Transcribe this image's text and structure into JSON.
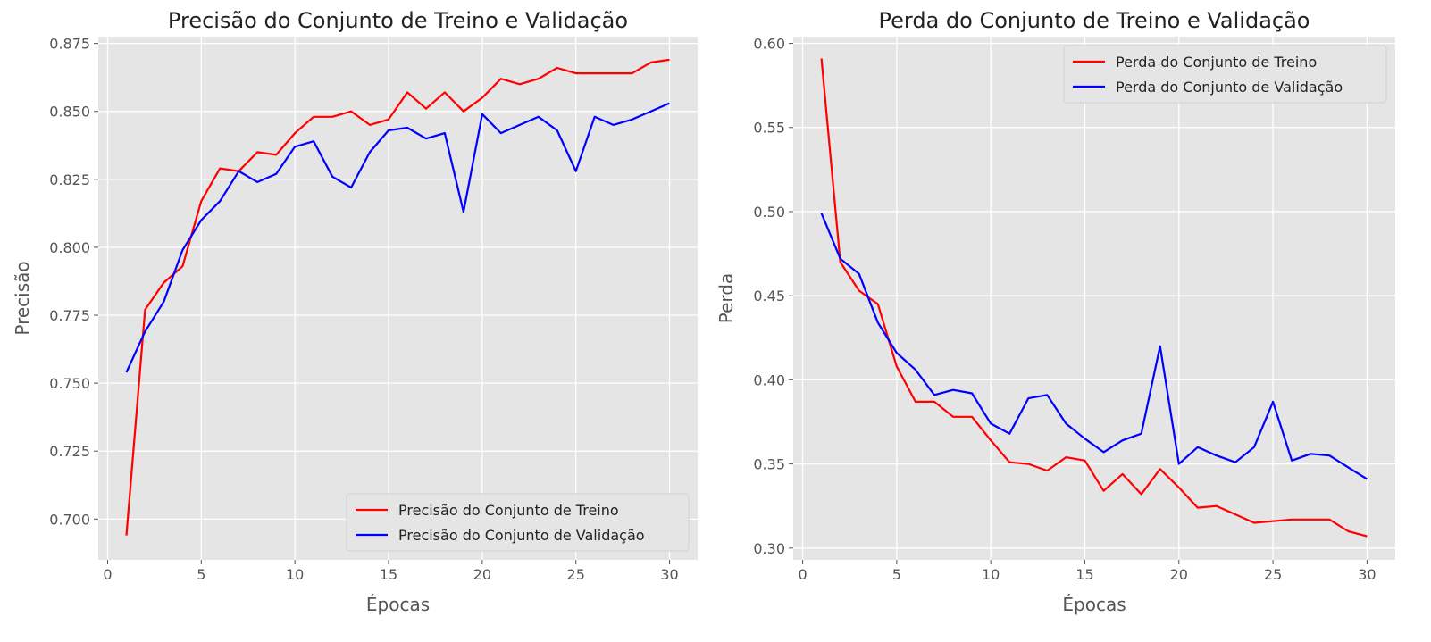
{
  "chart_data": [
    {
      "type": "line",
      "title": "Precisão do Conjunto de Treino e Validação",
      "xlabel": "Épocas",
      "ylabel": "Precisão",
      "xlim": [
        -0.5,
        31.5
      ],
      "ylim": [
        0.685,
        0.8775
      ],
      "xticks": [
        0,
        5,
        10,
        15,
        20,
        25,
        30
      ],
      "xtick_labels": [
        "0",
        "5",
        "10",
        "15",
        "20",
        "25",
        "30"
      ],
      "yticks": [
        0.7,
        0.725,
        0.75,
        0.775,
        0.8,
        0.825,
        0.85,
        0.875
      ],
      "ytick_labels": [
        "0.700",
        "0.725",
        "0.750",
        "0.775",
        "0.800",
        "0.825",
        "0.850",
        "0.875"
      ],
      "grid": true,
      "legend_position": "bottom-right",
      "x": [
        1,
        2,
        3,
        4,
        5,
        6,
        7,
        8,
        9,
        10,
        11,
        12,
        13,
        14,
        15,
        16,
        17,
        18,
        19,
        20,
        21,
        22,
        23,
        24,
        25,
        26,
        27,
        28,
        29,
        30
      ],
      "series": [
        {
          "name": "Precisão do Conjunto de Treino",
          "color": "#ff0000",
          "values": [
            0.694,
            0.777,
            0.787,
            0.793,
            0.817,
            0.829,
            0.828,
            0.835,
            0.834,
            0.842,
            0.848,
            0.848,
            0.85,
            0.845,
            0.847,
            0.857,
            0.851,
            0.857,
            0.85,
            0.855,
            0.862,
            0.86,
            0.862,
            0.866,
            0.864,
            0.864,
            0.864,
            0.864,
            0.868,
            0.869
          ]
        },
        {
          "name": "Precisão do Conjunto de Validação",
          "color": "#0000ff",
          "values": [
            0.754,
            0.769,
            0.78,
            0.799,
            0.81,
            0.817,
            0.828,
            0.824,
            0.827,
            0.837,
            0.839,
            0.826,
            0.822,
            0.835,
            0.843,
            0.844,
            0.84,
            0.842,
            0.813,
            0.849,
            0.842,
            0.845,
            0.848,
            0.843,
            0.828,
            0.848,
            0.845,
            0.847,
            0.85,
            0.853
          ]
        }
      ]
    },
    {
      "type": "line",
      "title": "Perda do Conjunto de Treino e Validação",
      "xlabel": "Épocas",
      "ylabel": "Perda",
      "xlim": [
        -0.5,
        31.5
      ],
      "ylim": [
        0.293,
        0.604
      ],
      "xticks": [
        0,
        5,
        10,
        15,
        20,
        25,
        30
      ],
      "xtick_labels": [
        "0",
        "5",
        "10",
        "15",
        "20",
        "25",
        "30"
      ],
      "yticks": [
        0.3,
        0.35,
        0.4,
        0.45,
        0.5,
        0.55,
        0.6
      ],
      "ytick_labels": [
        "0.30",
        "0.35",
        "0.40",
        "0.45",
        "0.50",
        "0.55",
        "0.60"
      ],
      "grid": true,
      "legend_position": "top-right",
      "x": [
        1,
        2,
        3,
        4,
        5,
        6,
        7,
        8,
        9,
        10,
        11,
        12,
        13,
        14,
        15,
        16,
        17,
        18,
        19,
        20,
        21,
        22,
        23,
        24,
        25,
        26,
        27,
        28,
        29,
        30
      ],
      "series": [
        {
          "name": "Perda do Conjunto de Treino",
          "color": "#ff0000",
          "values": [
            0.591,
            0.47,
            0.453,
            0.445,
            0.408,
            0.387,
            0.387,
            0.378,
            0.378,
            0.364,
            0.351,
            0.35,
            0.346,
            0.354,
            0.352,
            0.334,
            0.344,
            0.332,
            0.347,
            0.336,
            0.324,
            0.325,
            0.32,
            0.315,
            0.316,
            0.317,
            0.317,
            0.317,
            0.31,
            0.307
          ]
        },
        {
          "name": "Perda do Conjunto de Validação",
          "color": "#0000ff",
          "values": [
            0.499,
            0.472,
            0.463,
            0.434,
            0.416,
            0.406,
            0.391,
            0.394,
            0.392,
            0.374,
            0.368,
            0.389,
            0.391,
            0.374,
            0.365,
            0.357,
            0.364,
            0.368,
            0.42,
            0.35,
            0.36,
            0.355,
            0.351,
            0.36,
            0.387,
            0.352,
            0.356,
            0.355,
            0.348,
            0.341
          ]
        }
      ]
    }
  ]
}
